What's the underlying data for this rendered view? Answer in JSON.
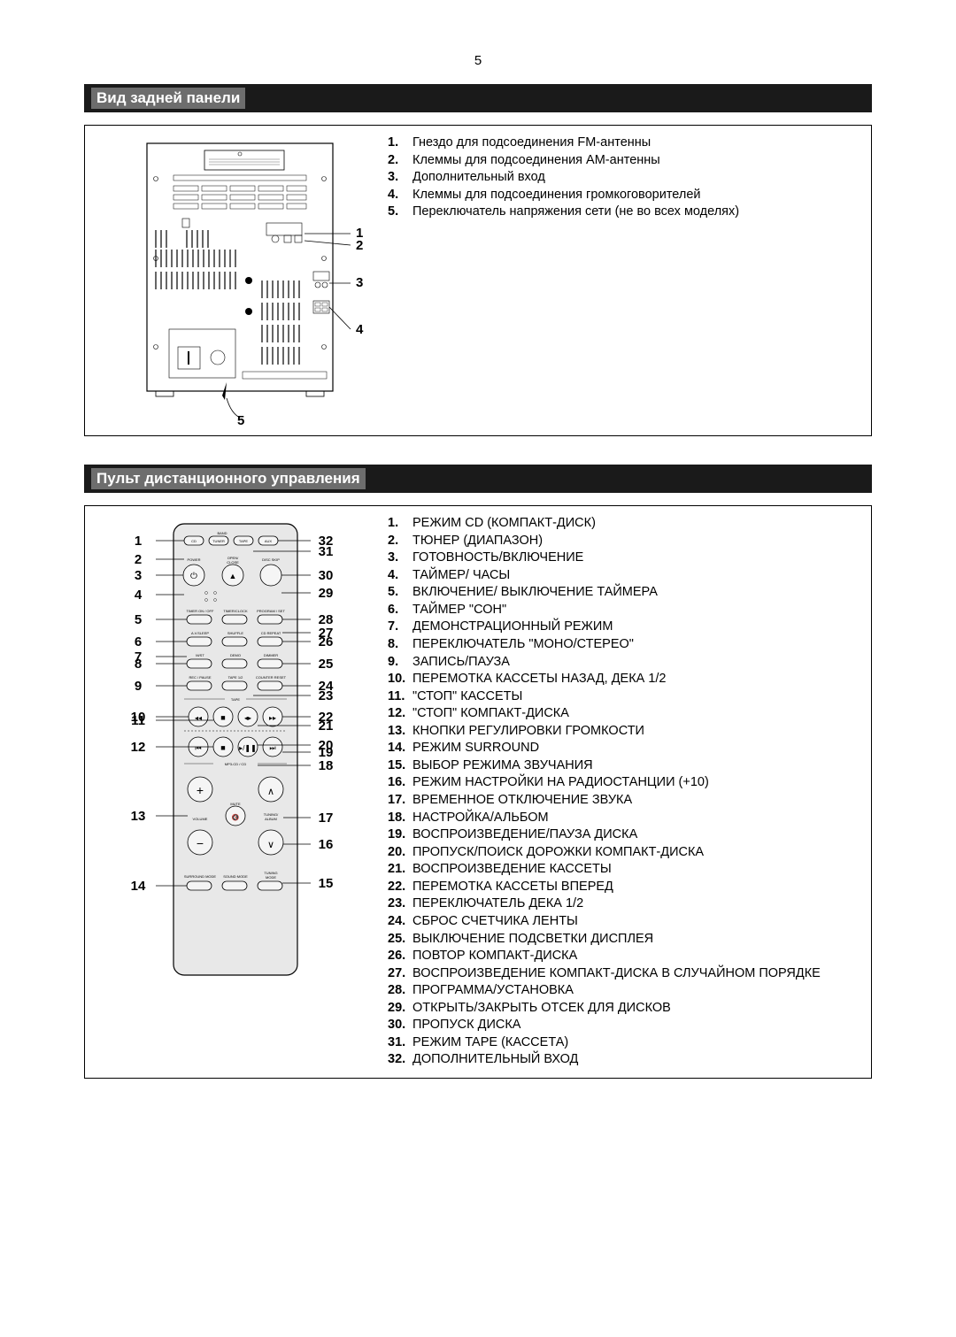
{
  "page_number": "5",
  "section1": {
    "title": "Вид задней панели",
    "callouts": [
      "1",
      "2",
      "3",
      "4",
      "5"
    ],
    "items": [
      {
        "n": "1.",
        "t": "Гнездо для подсоединения FM-антенны"
      },
      {
        "n": "2.",
        "t": "Клеммы для подсоединения AM-антенны"
      },
      {
        "n": "3.",
        "t": "Дополнительный вход"
      },
      {
        "n": "4.",
        "t": "Клеммы для подсоединения громкоговорителей"
      },
      {
        "n": "5.",
        "t": "Переключатель напряжения сети (не во всех моделях)"
      }
    ]
  },
  "section2": {
    "title": "Пульт дистанционного управления",
    "left_callouts": [
      "1",
      "2",
      "3",
      "4",
      "5",
      "6",
      "7",
      "8",
      "9",
      "10",
      "11",
      "12",
      "13",
      "14"
    ],
    "right_callouts": [
      "32",
      "31",
      "30",
      "29",
      "28",
      "27",
      "26",
      "25",
      "24",
      "23",
      "22",
      "21",
      "20",
      "19",
      "18",
      "17",
      "16",
      "15"
    ],
    "items": [
      {
        "n": "1.",
        "t": "РЕЖИМ CD (КОМПАКТ-ДИСК)"
      },
      {
        "n": "2.",
        "t": "ТЮНЕР (ДИАПАЗОН)"
      },
      {
        "n": "3.",
        "t": "ГОТОВНОСТЬ/ВКЛЮЧЕНИЕ"
      },
      {
        "n": "4.",
        "t": "ТАЙМЕР/ ЧАСЫ"
      },
      {
        "n": "5.",
        "t": "ВКЛЮЧЕНИЕ/ ВЫКЛЮЧЕНИЕ ТАЙМЕРА"
      },
      {
        "n": "6.",
        "t": "ТАЙМЕР \"СОН\""
      },
      {
        "n": "7.",
        "t": "ДЕМОНСТРАЦИОННЫЙ РЕЖИМ"
      },
      {
        "n": "8.",
        "t": "ПЕРЕКЛЮЧАТЕЛЬ \"МОНО/СТЕРЕО\""
      },
      {
        "n": "9.",
        "t": "ЗАПИСЬ/ПАУЗА"
      },
      {
        "n": "10.",
        "t": "ПЕРЕМОТКА КАССЕТЫ НАЗАД, ДЕКА 1/2"
      },
      {
        "n": "11.",
        "t": "\"СТОП\" КАССЕТЫ"
      },
      {
        "n": "12.",
        "t": "\"СТОП\" КОМПАКТ-ДИСКА"
      },
      {
        "n": "13.",
        "t": "КНОПКИ РЕГУЛИРОВКИ ГРОМКОСТИ"
      },
      {
        "n": "14.",
        "t": "РЕЖИМ SURROUND"
      },
      {
        "n": "15.",
        "t": "ВЫБОР РЕЖИМА ЗВУЧАНИЯ"
      },
      {
        "n": "16.",
        "t": "РЕЖИМ НАСТРОЙКИ НА РАДИОСТАНЦИИ (+10)"
      },
      {
        "n": "17.",
        "t": "ВРЕМЕННОЕ ОТКЛЮЧЕНИЕ ЗВУКА"
      },
      {
        "n": "18.",
        "t": "НАСТРОЙКА/АЛЬБОМ"
      },
      {
        "n": "19.",
        "t": "ВОСПРОИЗВЕДЕНИЕ/ПАУЗА ДИСКА"
      },
      {
        "n": "20.",
        "t": "ПРОПУСК/ПОИСК ДОРОЖКИ КОМПАКТ-ДИСКА"
      },
      {
        "n": "21.",
        "t": "ВОСПРОИЗВЕДЕНИЕ КАССЕТЫ"
      },
      {
        "n": "22.",
        "t": "ПЕРЕМОТКА КАССЕТЫ ВПЕРЕД"
      },
      {
        "n": "23.",
        "t": "ПЕРЕКЛЮЧАТЕЛЬ ДЕКА 1/2"
      },
      {
        "n": "24.",
        "t": "СБРОС СЧЕТЧИКА ЛЕНТЫ"
      },
      {
        "n": "25.",
        "t": "ВЫКЛЮЧЕНИЕ ПОДСВЕТКИ ДИСПЛЕЯ"
      },
      {
        "n": "26.",
        "t": "ПОВТОР КОМПАКТ-ДИСКА"
      },
      {
        "n": "27.",
        "t": "ВОСПРОИЗВЕДЕНИЕ КОМПАКТ-ДИСКА В СЛУЧАЙНОМ ПОРЯДКЕ"
      },
      {
        "n": "28.",
        "t": "ПРОГРАММА/УСТАНОВКА"
      },
      {
        "n": "29.",
        "t": "ОТКРЫТЬ/ЗАКРЫТЬ ОТСЕК ДЛЯ ДИСКОВ"
      },
      {
        "n": "30.",
        "t": "ПРОПУСК ДИСКА"
      },
      {
        "n": "31.",
        "t": "РЕЖИМ TAPE (КАССЕТА)"
      },
      {
        "n": "32.",
        "t": "ДОПОЛНИТЕЛЬНЫЙ ВХОД"
      }
    ],
    "remote_labels": {
      "band": "BAND",
      "cd": "CD",
      "tuner": "TUNER",
      "tape": "TAPE",
      "aux": "AUX",
      "power": "POWER",
      "open": "OPEN/",
      "close": "CLOSE",
      "discskip": "DISC SKIP",
      "timeron": "TIMER ON / OFF",
      "timerclock": "TIMER/CLOCK",
      "program": "PROGRAM / SET",
      "sleep": "A.V.SLEEP",
      "shuffle": "SHUFFLE",
      "cdrepeat": "CD REPEAT",
      "mst": "M/ST",
      "demo": "DEMO",
      "dimmer": "DIMMER",
      "recpause": "REC / PAUSE",
      "tape12": "TAPE 1/2",
      "counter": "COUNTER RESET",
      "tape_sec": "TAPE",
      "cd_sec": "MP3-CD / CD",
      "mute": "MUTE",
      "volume": "VOLUME",
      "tuning": "TUNING/",
      "album": "ALBUM",
      "surround": "SURROUND MODE",
      "sound": "SOUND MODE",
      "tmode": "TUNING",
      "mode10": "MODE"
    }
  },
  "colors": {
    "header_bg": "#1a1a1a",
    "header_inner": "#6d6d6d",
    "remote_fill": "#e8e8e8",
    "page_bg": "#ffffff"
  }
}
